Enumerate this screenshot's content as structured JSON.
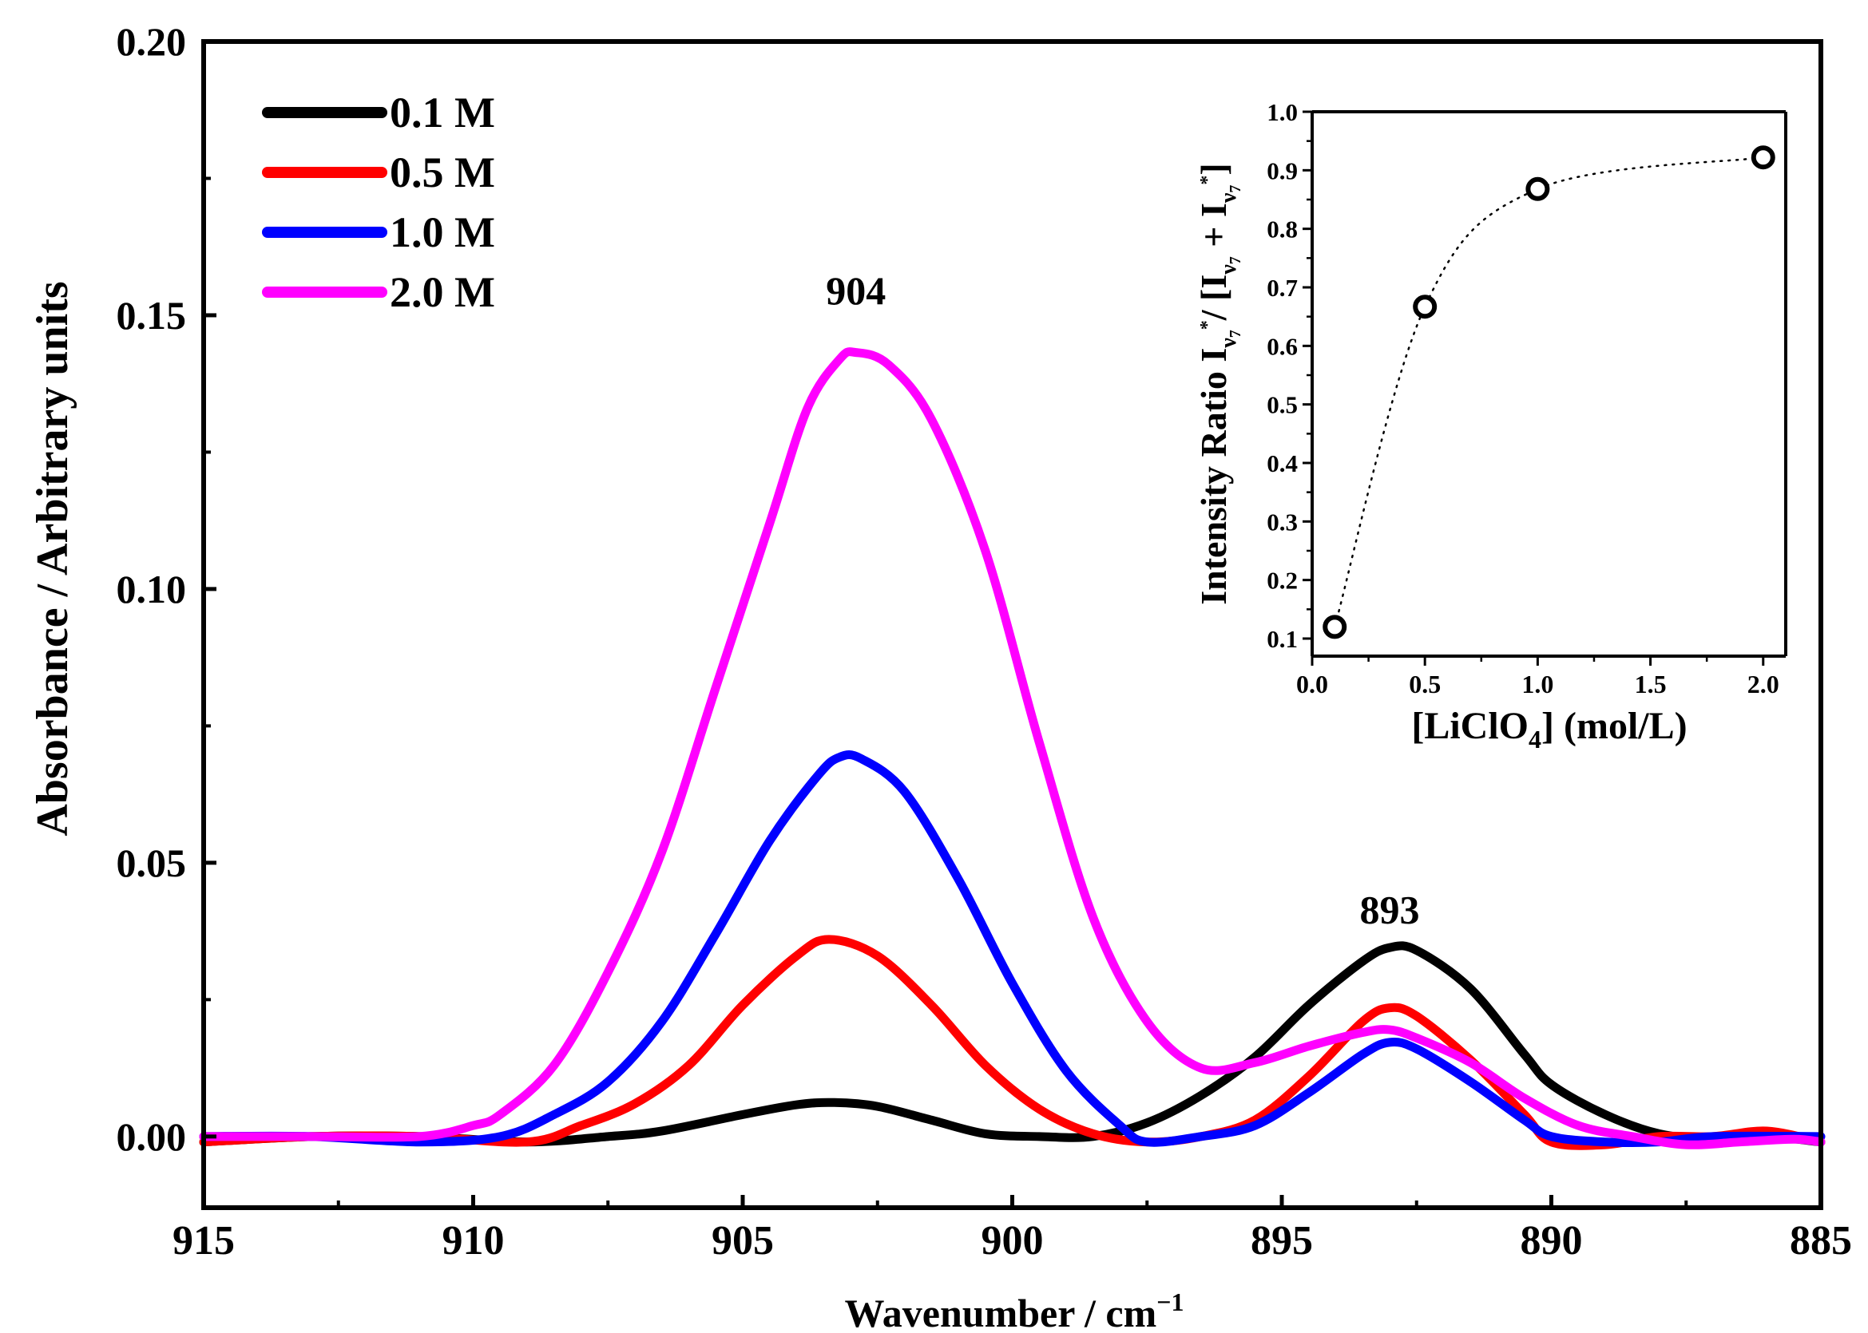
{
  "chart_data": [
    {
      "type": "line",
      "xlabel": "Wavenumber / cm",
      "xlabel_sup": "−1",
      "ylabel": "Absorbance / Arbitrary units",
      "xlim": [
        915,
        885
      ],
      "ylim": [
        -0.013,
        0.2
      ],
      "x_ticks": [
        915,
        910,
        905,
        900,
        895,
        890,
        885
      ],
      "x_tick_labels": [
        "915",
        "910",
        "905",
        "900",
        "895",
        "890",
        "885"
      ],
      "y_ticks": [
        0.0,
        0.05,
        0.1,
        0.15,
        0.2
      ],
      "y_tick_labels": [
        "0.00",
        "0.05",
        "0.10",
        "0.15",
        "0.20"
      ],
      "legend_position": "top-left",
      "annotations": [
        {
          "text": "904",
          "x": 902.9,
          "y": 0.152
        },
        {
          "text": "893",
          "x": 893.0,
          "y": 0.039
        }
      ],
      "series": [
        {
          "name": "0.1 M",
          "color": "#000000",
          "points": [
            [
              915,
              -0.001
            ],
            [
              913,
              0.0
            ],
            [
              911,
              0.0
            ],
            [
              909,
              -0.001
            ],
            [
              907.5,
              0.0
            ],
            [
              906.5,
              0.001
            ],
            [
              905,
              0.004
            ],
            [
              904,
              0.0058
            ],
            [
              903.3,
              0.0062
            ],
            [
              902.5,
              0.0055
            ],
            [
              901.5,
              0.003
            ],
            [
              900.5,
              0.0005
            ],
            [
              899.5,
              0.0
            ],
            [
              898.5,
              0.0
            ],
            [
              897.5,
              0.0025
            ],
            [
              896.5,
              0.0075
            ],
            [
              895.5,
              0.0145
            ],
            [
              894.5,
              0.024
            ],
            [
              893.5,
              0.032
            ],
            [
              893,
              0.0345
            ],
            [
              892.5,
              0.034
            ],
            [
              891.5,
              0.027
            ],
            [
              890.5,
              0.015
            ],
            [
              890,
              0.0095
            ],
            [
              889,
              0.004
            ],
            [
              888,
              0.0005
            ],
            [
              887,
              -0.0005
            ],
            [
              886,
              0.0
            ],
            [
              885,
              -0.001
            ]
          ]
        },
        {
          "name": "0.5 M",
          "color": "#ff0000",
          "points": [
            [
              915,
              -0.001
            ],
            [
              913,
              0.0
            ],
            [
              911,
              0.0
            ],
            [
              909,
              -0.001
            ],
            [
              908,
              0.002
            ],
            [
              907,
              0.006
            ],
            [
              906,
              0.013
            ],
            [
              905,
              0.024
            ],
            [
              904,
              0.033
            ],
            [
              903.4,
              0.036
            ],
            [
              902.5,
              0.033
            ],
            [
              901.5,
              0.024
            ],
            [
              900.5,
              0.013
            ],
            [
              899.5,
              0.005
            ],
            [
              898.5,
              0.0005
            ],
            [
              897.5,
              -0.001
            ],
            [
              896.5,
              0.0
            ],
            [
              895.5,
              0.003
            ],
            [
              894.5,
              0.011
            ],
            [
              893.5,
              0.021
            ],
            [
              893,
              0.0235
            ],
            [
              892.5,
              0.022
            ],
            [
              891.5,
              0.014
            ],
            [
              890.5,
              0.004
            ],
            [
              890,
              -0.001
            ],
            [
              889,
              -0.0015
            ],
            [
              888,
              0.0
            ],
            [
              887,
              0.0
            ],
            [
              886,
              0.001
            ],
            [
              885,
              -0.001
            ]
          ]
        },
        {
          "name": "1.0 M",
          "color": "#0000ff",
          "points": [
            [
              915,
              0.0
            ],
            [
              913,
              0.0
            ],
            [
              911,
              -0.001
            ],
            [
              909.5,
              0.0
            ],
            [
              908.5,
              0.004
            ],
            [
              907.5,
              0.01
            ],
            [
              906.5,
              0.021
            ],
            [
              905.5,
              0.037
            ],
            [
              904.5,
              0.054
            ],
            [
              903.6,
              0.066
            ],
            [
              903.2,
              0.0693
            ],
            [
              902.8,
              0.069
            ],
            [
              902,
              0.063
            ],
            [
              901,
              0.047
            ],
            [
              900,
              0.028
            ],
            [
              899,
              0.012
            ],
            [
              898,
              0.002
            ],
            [
              897.5,
              -0.001
            ],
            [
              896.5,
              0.0
            ],
            [
              895.5,
              0.002
            ],
            [
              894.5,
              0.008
            ],
            [
              893.5,
              0.015
            ],
            [
              893,
              0.0172
            ],
            [
              892.5,
              0.016
            ],
            [
              891.5,
              0.01
            ],
            [
              890.5,
              0.003
            ],
            [
              890,
              0.0
            ],
            [
              889,
              -0.001
            ],
            [
              888,
              -0.001
            ],
            [
              887,
              0.0
            ],
            [
              885,
              0.0
            ]
          ]
        },
        {
          "name": "2.0 M",
          "color": "#ff00ff",
          "points": [
            [
              915,
              0.0
            ],
            [
              913,
              0.0
            ],
            [
              911,
              0.0
            ],
            [
              910,
              0.002
            ],
            [
              909.5,
              0.004
            ],
            [
              908.5,
              0.013
            ],
            [
              907.5,
              0.03
            ],
            [
              906.5,
              0.052
            ],
            [
              905.5,
              0.082
            ],
            [
              904.5,
              0.112
            ],
            [
              903.8,
              0.133
            ],
            [
              903.2,
              0.142
            ],
            [
              902.9,
              0.1432
            ],
            [
              902.3,
              0.141
            ],
            [
              901.5,
              0.131
            ],
            [
              900.5,
              0.107
            ],
            [
              899.5,
              0.072
            ],
            [
              898.5,
              0.04
            ],
            [
              897.5,
              0.021
            ],
            [
              896.5,
              0.0125
            ],
            [
              895.5,
              0.0135
            ],
            [
              894.5,
              0.0165
            ],
            [
              893.5,
              0.019
            ],
            [
              893,
              0.0195
            ],
            [
              892.5,
              0.018
            ],
            [
              891.5,
              0.0135
            ],
            [
              890.5,
              0.007
            ],
            [
              889.5,
              0.002
            ],
            [
              888.5,
              0.0
            ],
            [
              887.5,
              -0.0015
            ],
            [
              886.5,
              -0.001
            ],
            [
              885.5,
              -0.0005
            ],
            [
              885,
              -0.001
            ]
          ]
        }
      ]
    },
    {
      "type": "scatter",
      "xlabel": "[LiClO",
      "xlabel_sub": "4",
      "xlabel_suffix": "]  (mol/L)",
      "ylabel": "Intensity Ratio I",
      "ylabel_sub_1": "ν",
      "ylabel_sub_1b": "7",
      "ylabel_sup_1": "*",
      "ylabel_mid": "/ [I",
      "ylabel_plus": " + I",
      "ylabel_end": "]",
      "xlim": [
        0.0,
        2.1
      ],
      "ylim": [
        0.07,
        1.0
      ],
      "x_ticks": [
        0.0,
        0.5,
        1.0,
        1.5,
        2.0
      ],
      "x_tick_labels": [
        "0.0",
        "0.5",
        "1.0",
        "1.5",
        "2.0"
      ],
      "y_ticks": [
        0.1,
        0.2,
        0.3,
        0.4,
        0.5,
        0.6,
        0.7,
        0.8,
        0.9,
        1.0
      ],
      "y_tick_labels": [
        "0.1",
        "0.2",
        "0.3",
        "0.4",
        "0.5",
        "0.6",
        "0.7",
        "0.8",
        "0.9",
        "1.0"
      ],
      "marker": "open-circle",
      "connector": "dotted",
      "x": [
        0.1,
        0.5,
        1.0,
        2.0
      ],
      "y": [
        0.12,
        0.667,
        0.868,
        0.922
      ]
    }
  ]
}
